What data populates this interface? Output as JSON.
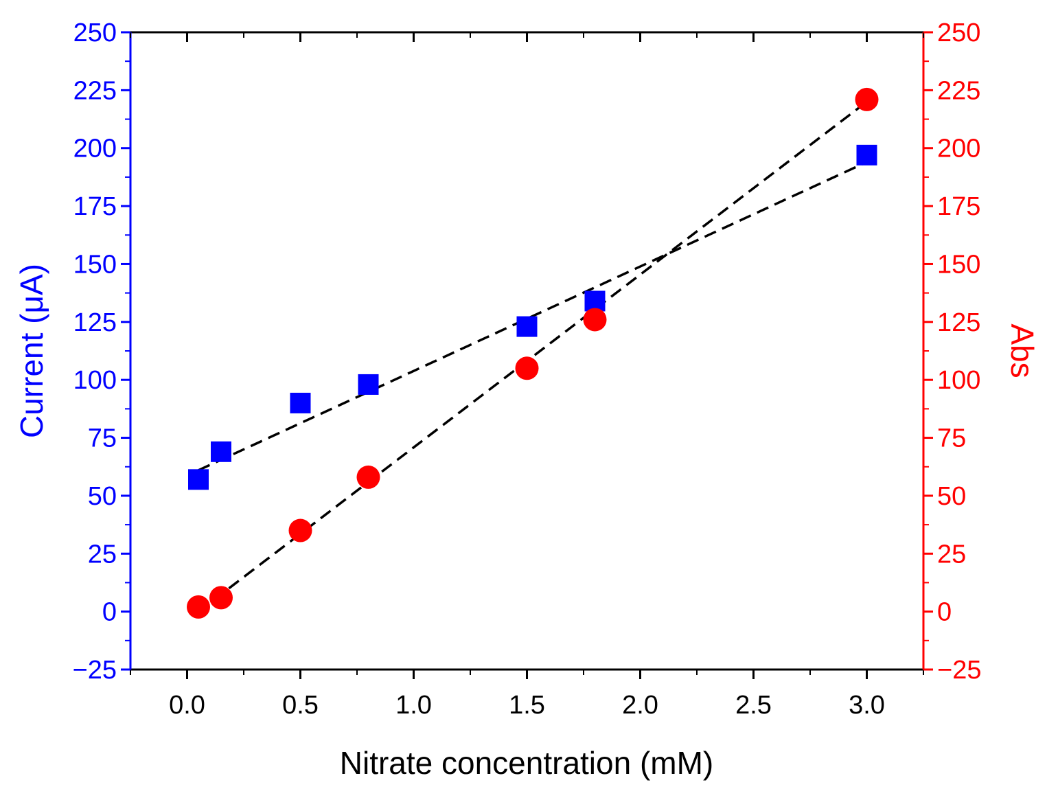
{
  "chart_data": {
    "type": "scatter",
    "title": "",
    "xlabel": "Nitrate concentration (mM)",
    "ylabel_left": "Current (μA)",
    "ylabel_right": "Abs",
    "xlim": [
      -0.25,
      3.25
    ],
    "ylim_left": [
      -25,
      250
    ],
    "ylim_right": [
      -25,
      250
    ],
    "x_ticks": [
      0.0,
      0.5,
      1.0,
      1.5,
      2.0,
      2.5,
      3.0
    ],
    "x_tick_labels": [
      "0.0",
      "0.5",
      "1.0",
      "1.5",
      "2.0",
      "2.5",
      "3.0"
    ],
    "y_ticks": [
      -25,
      0,
      25,
      50,
      75,
      100,
      125,
      150,
      175,
      200,
      225,
      250
    ],
    "y_tick_labels_left": [
      "−25",
      "0",
      "25",
      "50",
      "75",
      "100",
      "125",
      "150",
      "175",
      "200",
      "225",
      "250"
    ],
    "y_tick_labels_right": [
      "−25",
      "0",
      "25",
      "50",
      "75",
      "100",
      "125",
      "150",
      "175",
      "200",
      "225",
      "250"
    ],
    "grid": false,
    "series": [
      {
        "name": "Current",
        "axis": "left",
        "marker": "square",
        "color": "#0000ff",
        "x": [
          0.05,
          0.15,
          0.5,
          0.8,
          1.5,
          1.8,
          3.0
        ],
        "y": [
          57,
          69,
          90,
          98,
          123,
          134,
          197
        ],
        "fit": {
          "x": [
            0.05,
            3.0
          ],
          "y": [
            61,
            194
          ]
        }
      },
      {
        "name": "Abs",
        "axis": "right",
        "marker": "circle",
        "color": "#ff0000",
        "x": [
          0.05,
          0.15,
          0.5,
          0.8,
          1.5,
          1.8,
          3.0
        ],
        "y": [
          2,
          6,
          35,
          58,
          105,
          126,
          221
        ],
        "fit": {
          "x": [
            0.05,
            3.0
          ],
          "y": [
            0,
            220
          ]
        }
      }
    ]
  }
}
